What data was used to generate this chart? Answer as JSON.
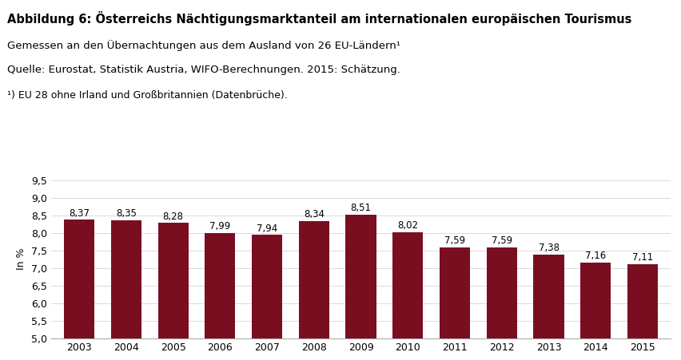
{
  "title_bold": "Abbildung 6: Österreichs Nächtigungsmarktanteil am internationalen europäischen Tourismus",
  "subtitle1": "Gemessen an den Übernachtungen aus dem Ausland von 26 EU-Ländern¹",
  "subtitle2": "Quelle: Eurostat, Statistik Austria, WIFO-Berechnungen. 2015: Schätzung.",
  "footnote": "¹) EU 28 ohne Irland und Großbritannien (Datenbrüche).",
  "years": [
    2003,
    2004,
    2005,
    2006,
    2007,
    2008,
    2009,
    2010,
    2011,
    2012,
    2013,
    2014,
    2015
  ],
  "values": [
    8.37,
    8.35,
    8.28,
    7.99,
    7.94,
    8.34,
    8.51,
    8.02,
    7.59,
    7.59,
    7.38,
    7.16,
    7.11
  ],
  "bar_color": "#7a0e21",
  "ylabel": "In %",
  "ylim_min": 5.0,
  "ylim_max": 9.5,
  "yticks": [
    5.0,
    5.5,
    6.0,
    6.5,
    7.0,
    7.5,
    8.0,
    8.5,
    9.0,
    9.5
  ],
  "ytick_labels": [
    "5,0",
    "5,5",
    "6,0",
    "6,5",
    "7,0",
    "7,5",
    "8,0",
    "8,5",
    "9,0",
    "9,5"
  ],
  "background_color": "#ffffff",
  "grid_color": "#cccccc",
  "label_fontsize": 8.5,
  "axis_fontsize": 9,
  "title_fontsize": 10.5,
  "subtitle_fontsize": 9.5
}
